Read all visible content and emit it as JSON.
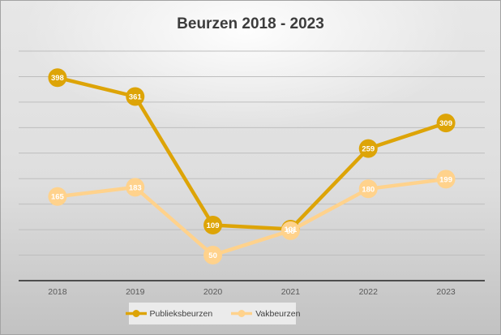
{
  "chart_data": {
    "type": "line",
    "title": "Beurzen 2018 - 2023",
    "categories": [
      "2018",
      "2019",
      "2020",
      "2021",
      "2022",
      "2023"
    ],
    "series": [
      {
        "name": "Publieksbeurzen",
        "color": "#DDA407",
        "values": [
          398,
          361,
          109,
          101,
          259,
          309
        ]
      },
      {
        "name": "Vakbeurzen",
        "color": "#FFD28C",
        "values": [
          165,
          183,
          50,
          98,
          180,
          199
        ]
      }
    ],
    "ylim": [
      0,
      450
    ],
    "gridline_step": 50,
    "grid": true,
    "y_axis_labels_visible": false,
    "x_axis_labels_visible": true,
    "legend_position": "bottom",
    "data_label_position": "center-on-marker",
    "data_label_color": "#FFFFFF"
  },
  "colors": {
    "title_text": "#3C3C3C",
    "axis_text": "#595959",
    "gridline": "#BEBEBE",
    "axis_line": "#4D4D4D",
    "legend_background": "#EBEBEB"
  }
}
